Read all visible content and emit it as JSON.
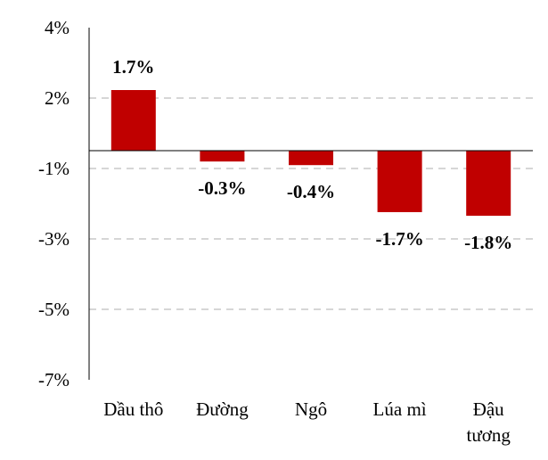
{
  "chart_data": {
    "type": "bar",
    "categories": [
      "Dầu thô",
      "Đường",
      "Ngô",
      "Lúa mì",
      "Đậu tương"
    ],
    "values": [
      1.7,
      -0.3,
      -0.4,
      -1.7,
      -1.8
    ],
    "data_labels": [
      "1.7%",
      "-0.3%",
      "-0.4%",
      "-1.7%",
      "-1.8%"
    ],
    "y_ticks": [
      {
        "value": 4,
        "label": "4%"
      },
      {
        "value": 2,
        "label": "2%"
      },
      {
        "value": -1,
        "label": "-1%"
      },
      {
        "value": -3,
        "label": "-3%"
      },
      {
        "value": -5,
        "label": "-5%"
      },
      {
        "value": -7,
        "label": "-7%"
      }
    ],
    "ylim": [
      -7,
      4
    ],
    "title": "",
    "xlabel": "",
    "ylabel": "",
    "grid": true,
    "bar_color": "#C00000",
    "grid_color": "#C8C8C8"
  }
}
